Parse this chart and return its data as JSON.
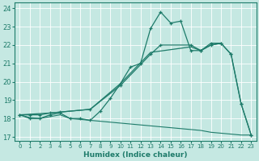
{
  "xlabel": "Humidex (Indice chaleur)",
  "xlim": [
    -0.5,
    23.5
  ],
  "ylim": [
    16.8,
    24.3
  ],
  "yticks": [
    17,
    18,
    19,
    20,
    21,
    22,
    23,
    24
  ],
  "xticks": [
    0,
    1,
    2,
    3,
    4,
    5,
    6,
    7,
    8,
    9,
    10,
    11,
    12,
    13,
    14,
    15,
    16,
    17,
    18,
    19,
    20,
    21,
    22,
    23
  ],
  "bg_color": "#c5e8e2",
  "grid_color": "#ffffff",
  "line_color": "#1e7b6a",
  "line1_x": [
    0,
    1,
    2,
    3,
    4,
    5,
    6,
    7,
    8,
    9,
    10,
    11,
    12,
    13,
    14,
    15,
    16,
    17,
    18,
    19,
    20,
    21,
    22,
    23
  ],
  "line1_y": [
    18.2,
    18.0,
    18.0,
    18.2,
    18.3,
    18.0,
    18.0,
    17.9,
    18.4,
    19.1,
    19.9,
    20.8,
    21.0,
    22.9,
    23.8,
    23.2,
    23.3,
    21.7,
    21.7,
    22.1,
    22.1,
    21.5,
    18.8,
    17.1
  ],
  "line2_x": [
    0,
    1,
    2,
    3,
    4,
    5,
    6,
    7,
    8,
    9,
    10,
    11,
    12,
    13,
    14,
    15,
    16,
    17,
    18,
    19,
    20,
    21,
    22,
    23
  ],
  "line2_y": [
    18.2,
    18.05,
    18.0,
    18.1,
    18.2,
    18.0,
    17.95,
    17.9,
    17.85,
    17.8,
    17.75,
    17.7,
    17.65,
    17.6,
    17.55,
    17.5,
    17.45,
    17.4,
    17.35,
    17.25,
    17.2,
    17.15,
    17.1,
    17.1
  ],
  "line3_x": [
    0,
    1,
    2,
    3,
    4,
    7,
    10,
    13,
    14,
    17,
    18,
    19,
    20,
    21,
    22,
    23
  ],
  "line3_y": [
    18.2,
    18.2,
    18.2,
    18.3,
    18.35,
    18.5,
    19.8,
    21.5,
    22.0,
    22.0,
    21.7,
    22.0,
    22.1,
    21.5,
    18.8,
    17.1
  ],
  "line4_x": [
    0,
    3,
    7,
    10,
    13,
    17,
    18,
    19,
    20
  ],
  "line4_y": [
    18.2,
    18.3,
    18.5,
    19.9,
    21.6,
    21.9,
    21.7,
    22.0,
    22.1
  ]
}
